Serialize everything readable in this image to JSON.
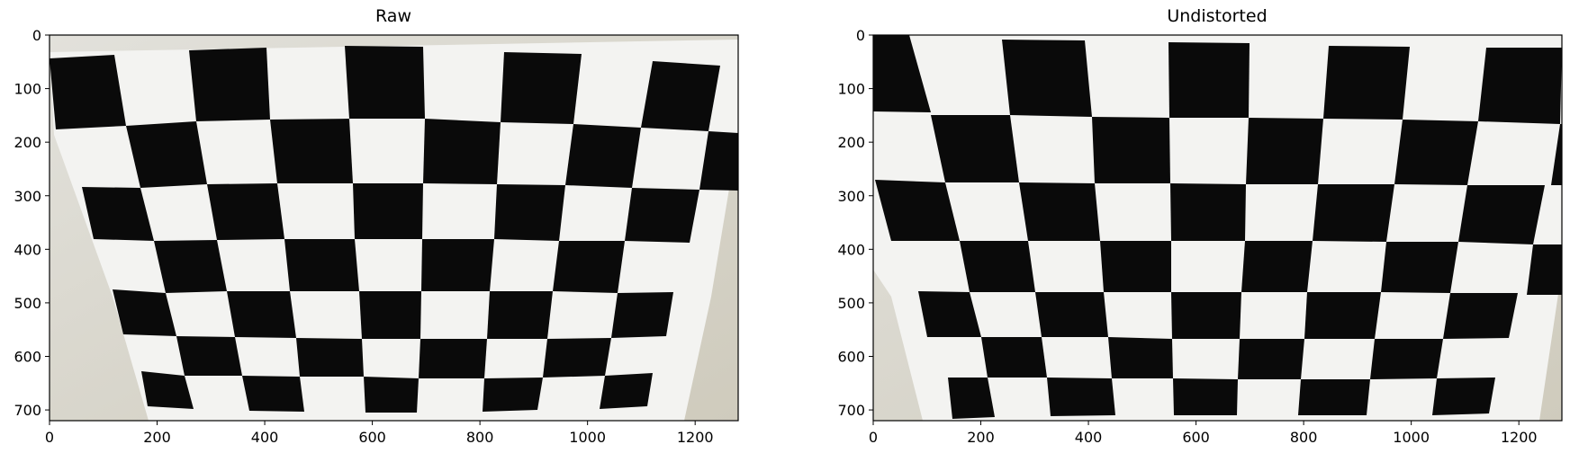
{
  "figure": {
    "panels": [
      {
        "title": "Raw",
        "image_description_icon": "checkerboard-photo-icon",
        "x_ticks": [
          "0",
          "200",
          "400",
          "600",
          "800",
          "1000",
          "1200"
        ],
        "y_ticks": [
          "0",
          "100",
          "200",
          "300",
          "400",
          "500",
          "600",
          "700"
        ],
        "x_tick_values": [
          0,
          200,
          400,
          600,
          800,
          1000,
          1200
        ],
        "y_tick_values": [
          0,
          100,
          200,
          300,
          400,
          500,
          600,
          700
        ],
        "xlim": [
          0,
          1280
        ],
        "ylim": [
          720,
          0
        ]
      },
      {
        "title": "Undistorted",
        "image_description_icon": "checkerboard-photo-icon",
        "x_ticks": [
          "0",
          "200",
          "400",
          "600",
          "800",
          "1000",
          "1200"
        ],
        "y_ticks": [
          "0",
          "100",
          "200",
          "300",
          "400",
          "500",
          "600",
          "700"
        ],
        "x_tick_values": [
          0,
          200,
          400,
          600,
          800,
          1000,
          1200
        ],
        "y_tick_values": [
          0,
          100,
          200,
          300,
          400,
          500,
          600,
          700
        ],
        "xlim": [
          0,
          1280
        ],
        "ylim": [
          720,
          0
        ]
      }
    ],
    "colors": {
      "square_dark": "#0a0a0a",
      "paper": "#f2f2f0",
      "wall": "#d8d6cc",
      "axis": "#000000"
    }
  }
}
